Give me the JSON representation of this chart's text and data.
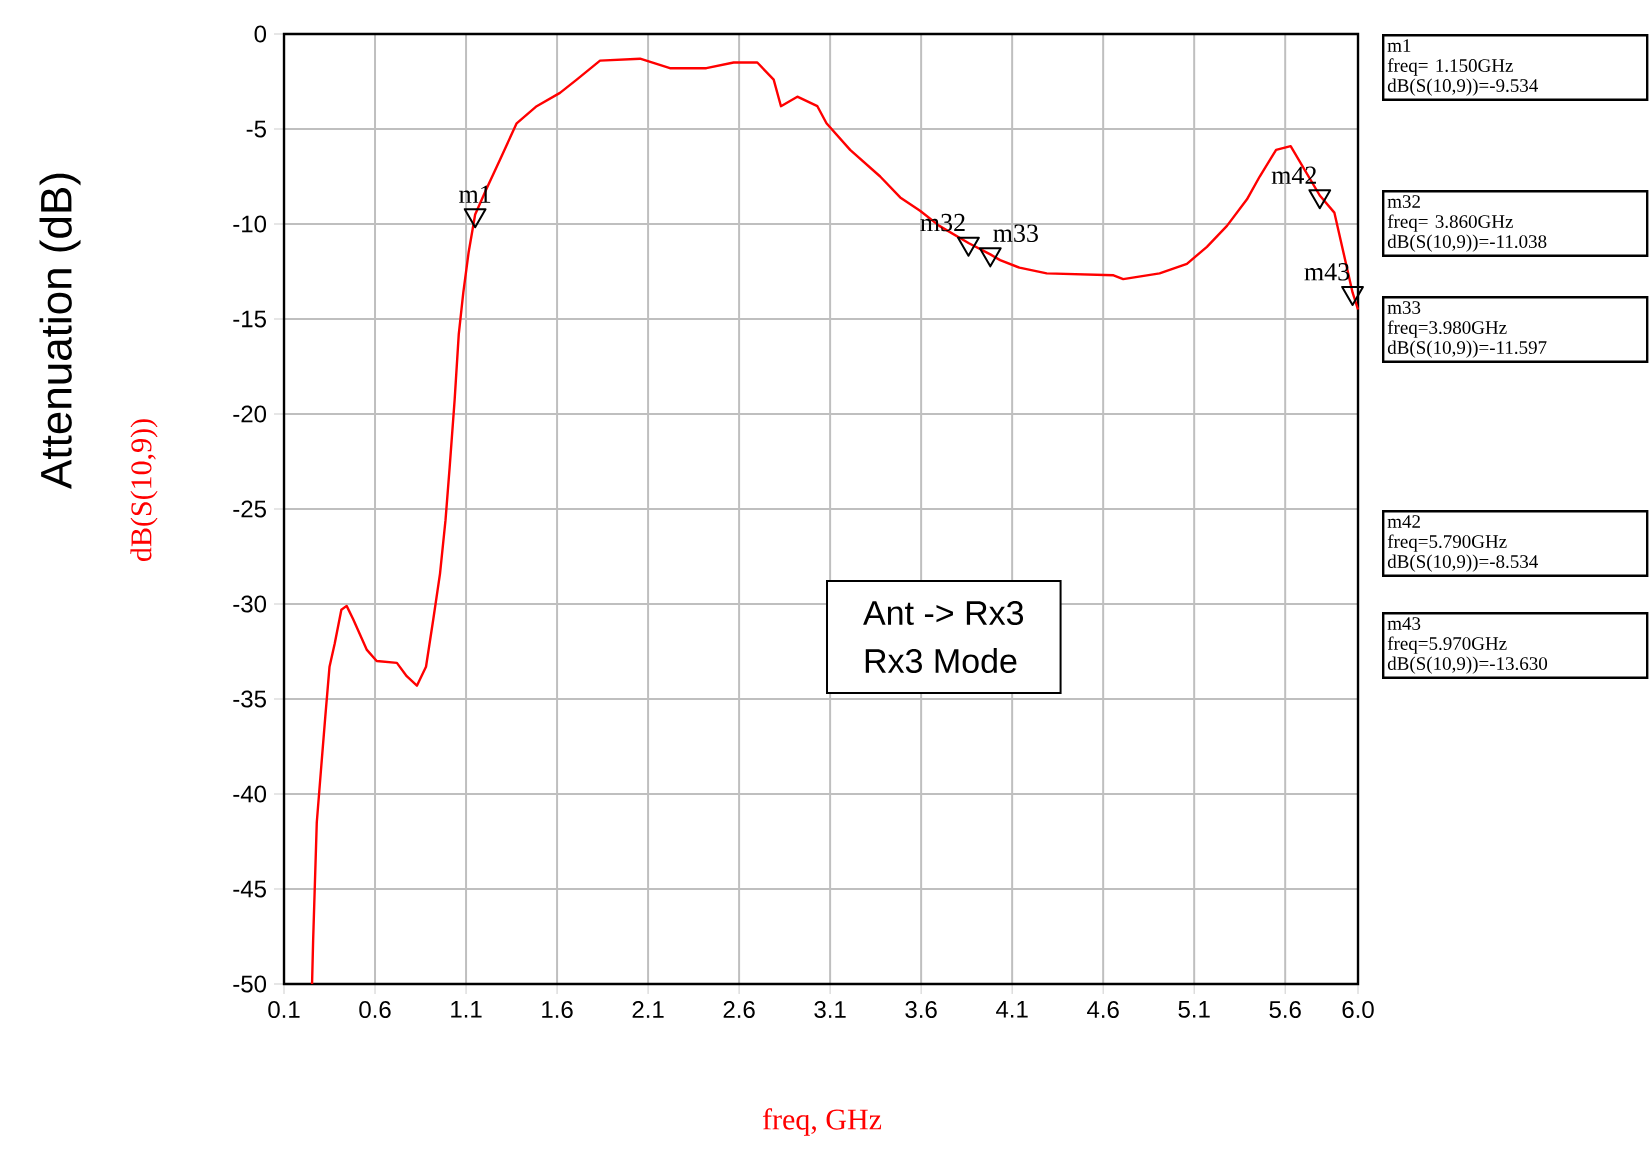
{
  "chart_data": {
    "type": "line",
    "xlabel": "freq, GHz",
    "ylabel": "Attenuation (dB)",
    "xlim": [
      0.1,
      6.0
    ],
    "ylim": [
      -50,
      0
    ],
    "xticks": [
      0.1,
      0.6,
      1.1,
      1.6,
      2.1,
      2.6,
      3.1,
      3.6,
      4.1,
      4.6,
      5.1,
      5.6,
      {
        "value": 6.0,
        "label": "6.0"
      }
    ],
    "yticks": [
      -50,
      -45,
      -40,
      -35,
      -30,
      -25,
      -20,
      -15,
      -10,
      -5,
      0
    ],
    "grid": true,
    "marker": "none",
    "line_style": "solid",
    "series": [
      {
        "name": "dB(S(10,9))",
        "color": "#ff0000",
        "x": [
          0.254,
          0.26,
          0.28,
          0.305,
          0.327,
          0.35,
          0.378,
          0.415,
          0.444,
          0.48,
          0.554,
          0.609,
          0.72,
          0.774,
          0.83,
          0.88,
          0.92,
          0.957,
          0.987,
          1.01,
          1.037,
          1.06,
          1.085,
          1.114,
          1.15,
          1.21,
          1.287,
          1.378,
          1.488,
          1.616,
          1.708,
          1.836,
          2.056,
          2.22,
          2.42,
          2.57,
          2.7,
          2.79,
          2.83,
          2.92,
          3.03,
          3.08,
          3.21,
          3.375,
          3.485,
          3.594,
          3.7,
          3.86,
          3.98,
          4.034,
          4.14,
          4.29,
          4.657,
          4.71,
          4.91,
          5.06,
          5.17,
          5.28,
          5.39,
          5.46,
          5.55,
          5.63,
          5.79,
          5.87,
          5.97,
          6.0
        ],
        "values": [
          -50.0,
          -47.7,
          -41.5,
          -38.5,
          -35.9,
          -33.3,
          -32.1,
          -30.3,
          -30.1,
          -30.8,
          -32.4,
          -33.0,
          -33.1,
          -33.8,
          -34.3,
          -33.3,
          -30.8,
          -28.4,
          -25.6,
          -22.8,
          -19.3,
          -15.8,
          -13.6,
          -11.5,
          -9.5,
          -8.2,
          -6.6,
          -4.7,
          -3.8,
          -3.1,
          -2.4,
          -1.4,
          -1.3,
          -1.8,
          -1.8,
          -1.5,
          -1.5,
          -2.4,
          -3.8,
          -3.3,
          -3.8,
          -4.7,
          -6.1,
          -7.5,
          -8.6,
          -9.3,
          -10.1,
          -11.0,
          -11.6,
          -11.9,
          -12.3,
          -12.6,
          -12.7,
          -12.9,
          -12.6,
          -12.1,
          -11.2,
          -10.1,
          -8.7,
          -7.5,
          -6.1,
          -5.9,
          -8.5,
          -9.4,
          -13.6,
          -14.5
        ]
      },
      {
        "type": "scatter",
        "color": "#000000",
        "marker": "triangle",
        "x": [
          1.15,
          3.86,
          3.98,
          5.79,
          5.97
        ],
        "values": [
          -9.534,
          -11.038,
          -11.597,
          -8.534,
          -13.63
        ]
      }
    ],
    "annotations": [
      {
        "text": "m1",
        "x": 1.15,
        "y": -9.534
      },
      {
        "text": "m32",
        "x": 3.86,
        "y": -11.038
      },
      {
        "text": "m33",
        "x": 3.98,
        "y": -11.597
      },
      {
        "text": "m42",
        "x": 5.79,
        "y": -8.534
      },
      {
        "text": "m43",
        "x": 5.97,
        "y": -13.63
      },
      "m1",
      "freq= 1.150GHz",
      "dB(S(10,9))=-9.534",
      "m32",
      "freq= 3.860GHz",
      "dB(S(10,9))=-11.038",
      "m33",
      "freq=3.980GHz",
      "dB(S(10,9))=-11.597",
      "m42",
      "freq=5.790GHz",
      "dB(S(10,9))=-8.534",
      "m43",
      "freq=5.970GHz",
      "dB(S(10,9))=-13.630",
      "Ant -> Rx3",
      "Rx3 Mode"
    ]
  }
}
